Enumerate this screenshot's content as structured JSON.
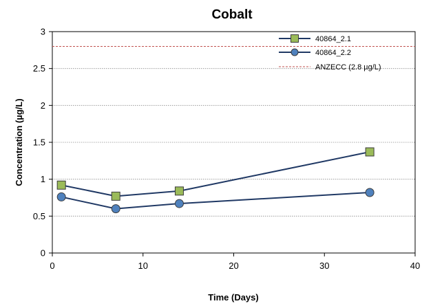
{
  "chart_data": {
    "type": "line",
    "title": "Cobalt",
    "xlabel": "Time (Days)",
    "ylabel": "Concentration (µg/L)",
    "xlim": [
      0,
      40
    ],
    "ylim": [
      0,
      3
    ],
    "xticks": [
      0,
      10,
      20,
      30,
      40
    ],
    "yticks": [
      0,
      0.5,
      1,
      1.5,
      2,
      2.5,
      3
    ],
    "xtick_labels": [
      "0",
      "10",
      "20",
      "30",
      "40"
    ],
    "ytick_labels": [
      "0",
      "0.5",
      "1",
      "1.5",
      "2",
      "2.5",
      "3"
    ],
    "grid": "horizontal",
    "legend_position": "top-right",
    "series": [
      {
        "name": "40864_2.1",
        "marker": "square",
        "color": "#9bbb59",
        "x": [
          1,
          7,
          14,
          35
        ],
        "y": [
          0.92,
          0.77,
          0.84,
          1.37
        ]
      },
      {
        "name": "40864_2.2",
        "marker": "circle",
        "color": "#4f81bd",
        "x": [
          1,
          7,
          14,
          35
        ],
        "y": [
          0.76,
          0.6,
          0.67,
          0.82
        ]
      }
    ],
    "reference_lines": [
      {
        "name": "ANZECC (2.8 µg/L)",
        "y": 2.8,
        "color": "#c0504d",
        "style": "dashed"
      }
    ]
  }
}
